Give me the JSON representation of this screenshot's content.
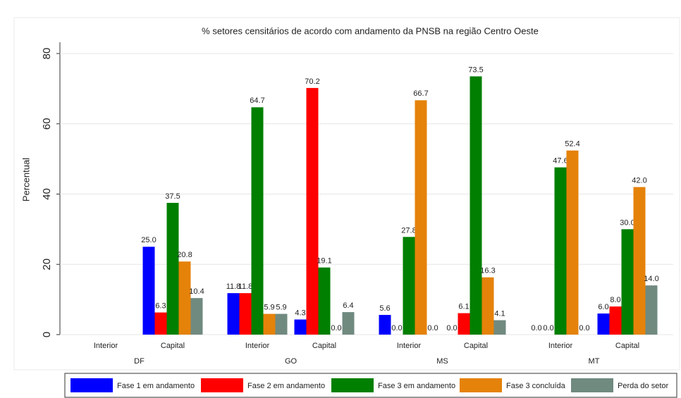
{
  "chart_data": {
    "type": "bar",
    "title": "% setores censitários de acordo com andamento da PNSB na região Centro Oeste",
    "y_label": "Percentual",
    "groups": [
      "DF",
      "GO",
      "MS",
      "MT"
    ],
    "categories": [
      "Interior",
      "Capital",
      "Interior",
      "Capital",
      "Interior",
      "Capital",
      "Interior",
      "Capital"
    ],
    "ylim": [
      0,
      80
    ],
    "yticks": [
      0,
      20,
      40,
      60,
      80
    ],
    "grid": true,
    "legend": "bottom",
    "series": [
      {
        "name": "Fase 1 em andamento",
        "color": "#0000ff",
        "values": [
          null,
          25,
          11.8,
          4.3,
          5.6,
          0,
          0,
          6
        ],
        "value_labels": [
          null,
          "25.0",
          "11.8",
          "4.3",
          "5.6",
          "0.0",
          "0.0",
          "6.0"
        ]
      },
      {
        "name": "Fase 2 em andamento",
        "color": "#ff0000",
        "values": [
          null,
          6.3,
          11.8,
          70.2,
          0,
          6.1,
          0,
          8
        ],
        "value_labels": [
          null,
          "6.3",
          "11.8",
          "70.2",
          "0.0",
          "6.1",
          "0.0",
          "8.0"
        ]
      },
      {
        "name": "Fase 3 em andamento",
        "color": "#007f00",
        "values": [
          null,
          37.5,
          64.7,
          19.1,
          27.8,
          73.5,
          47.6,
          30
        ],
        "value_labels": [
          null,
          "37.5",
          "64.7",
          "19.1",
          "27.8",
          "73.5",
          "47.6",
          "30.0"
        ]
      },
      {
        "name": "Fase 3 concluída",
        "color": "#e5820a",
        "values": [
          null,
          20.8,
          5.9,
          0,
          66.7,
          16.3,
          52.4,
          42
        ],
        "value_labels": [
          null,
          "20.8",
          "5.9",
          "0.0",
          "66.7",
          "16.3",
          "52.4",
          "42.0"
        ]
      },
      {
        "name": "Perda do setor",
        "color": "#708a80",
        "values": [
          null,
          10.4,
          5.9,
          6.4,
          0,
          4.1,
          0,
          14
        ],
        "value_labels": [
          null,
          "10.4",
          "5.9",
          "6.4",
          "0.0",
          "4.1",
          "0.0",
          "14.0"
        ]
      }
    ]
  }
}
